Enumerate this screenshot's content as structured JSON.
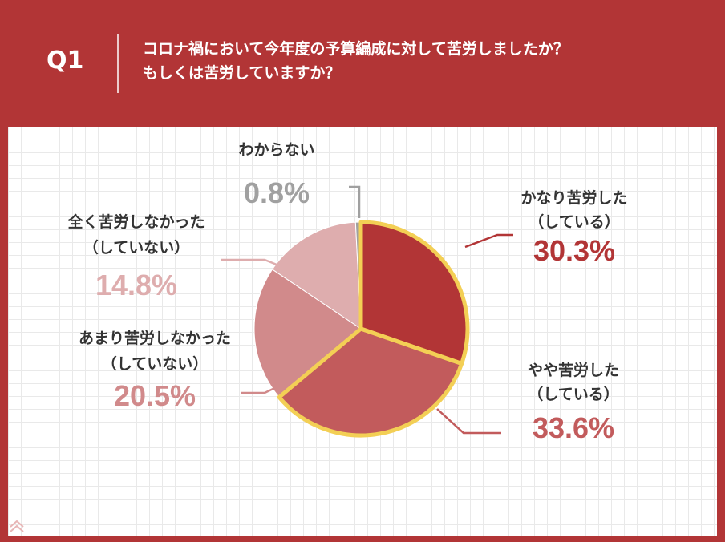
{
  "header": {
    "q_label": "Q1",
    "question_line1": "コロナ禍において今年度の予算編成に対して苦労しましたか？",
    "question_line2": "もしくは苦労していますか？"
  },
  "colors": {
    "background": "#b23536",
    "highlight_outline": "#f3cf55",
    "slice_1": "#b23536",
    "slice_2": "#c25b5c",
    "slice_3": "#d18a8b",
    "slice_4": "#deadae",
    "slice_5": "#a0a0a0",
    "label_dark": "#333333"
  },
  "chart_data": {
    "type": "pie",
    "title": "",
    "unit": "%",
    "start_angle_deg": 0,
    "direction": "clockwise",
    "slices": [
      {
        "label_line1": "かなり苦労した",
        "label_line2": "（している）",
        "value": 30.3,
        "value_text": "30.3%",
        "color": "#b23536",
        "highlighted": true
      },
      {
        "label_line1": "やや苦労した",
        "label_line2": "（している）",
        "value": 33.6,
        "value_text": "33.6%",
        "color": "#c25b5c",
        "highlighted": true
      },
      {
        "label_line1": "あまり苦労しなかった",
        "label_line2": "（していない）",
        "value": 20.5,
        "value_text": "20.5%",
        "color": "#d18a8b",
        "highlighted": false
      },
      {
        "label_line1": "全く苦労しなかった",
        "label_line2": "（していない）",
        "value": 14.8,
        "value_text": "14.8%",
        "color": "#deadae",
        "highlighted": false
      },
      {
        "label_line1": "わからない",
        "label_line2": "",
        "value": 0.8,
        "value_text": "0.8%",
        "color": "#a0a0a0",
        "highlighted": false
      }
    ]
  }
}
